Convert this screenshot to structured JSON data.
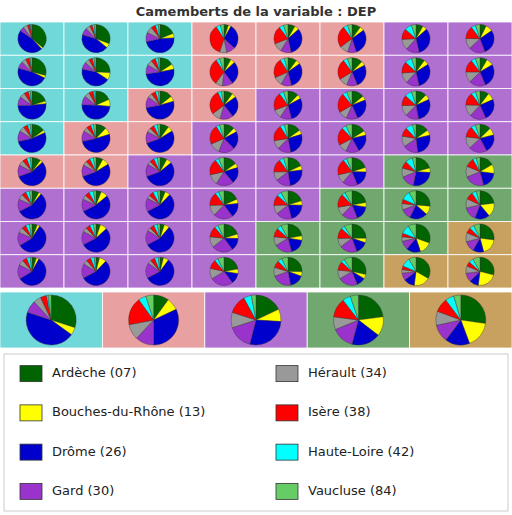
{
  "chart_data": {
    "type": "pie",
    "title": "Camemberts de la variable : DEP",
    "categories": [
      "Ardèche (07)",
      "Bouches-du-Rhône (13)",
      " Drôme (26)",
      "Gard (30)",
      "Hérault (34)",
      "Isère (38)",
      " Haute-Loire (42)",
      "Vaucluse (84)"
    ],
    "colors": [
      "#006400",
      "#ffff00",
      "#0000cc",
      "#9933cc",
      "#999999",
      "#ff0000",
      "#00ffff",
      "#66cc66"
    ],
    "legend": "bottom",
    "series": [
      {
        "color": "#70d8d8",
        "values": [
          35,
          2,
          45,
          5,
          5,
          3,
          1,
          1
        ]
      },
      {
        "color": "#70d8d8",
        "values": [
          30,
          5,
          42,
          8,
          5,
          3,
          2,
          2
        ]
      },
      {
        "color": "#70d8d8",
        "values": [
          18,
          5,
          45,
          10,
          7,
          5,
          3,
          2
        ]
      },
      {
        "color": "#e8a0a0",
        "values": [
          5,
          3,
          28,
          10,
          8,
          35,
          5,
          4
        ]
      },
      {
        "color": "#e8a0a0",
        "values": [
          8,
          5,
          32,
          12,
          10,
          20,
          5,
          5
        ]
      },
      {
        "color": "#e8a0a0",
        "values": [
          10,
          5,
          30,
          10,
          10,
          25,
          5,
          5
        ]
      },
      {
        "color": "#b070d0",
        "values": [
          8,
          5,
          32,
          15,
          12,
          12,
          8,
          5
        ]
      },
      {
        "color": "#b070d0",
        "values": [
          7,
          8,
          28,
          18,
          12,
          14,
          5,
          5
        ]
      },
      {
        "color": "#70d8d8",
        "values": [
          28,
          3,
          45,
          8,
          5,
          4,
          1,
          2
        ]
      },
      {
        "color": "#70d8d8",
        "values": [
          25,
          8,
          42,
          8,
          5,
          4,
          2,
          2
        ]
      },
      {
        "color": "#70d8d8",
        "values": [
          15,
          6,
          48,
          10,
          6,
          5,
          3,
          2
        ]
      },
      {
        "color": "#e8a0a0",
        "values": [
          8,
          5,
          26,
          12,
          8,
          30,
          4,
          5
        ]
      },
      {
        "color": "#e8a0a0",
        "values": [
          10,
          5,
          30,
          12,
          10,
          22,
          5,
          4
        ]
      },
      {
        "color": "#e8a0a0",
        "values": [
          12,
          5,
          26,
          12,
          10,
          23,
          5,
          5
        ]
      },
      {
        "color": "#b070d0",
        "values": [
          10,
          6,
          30,
          15,
          12,
          13,
          8,
          5
        ]
      },
      {
        "color": "#b070d0",
        "values": [
          8,
          8,
          26,
          18,
          12,
          14,
          5,
          5
        ]
      },
      {
        "color": "#70d8d8",
        "values": [
          20,
          3,
          50,
          10,
          6,
          5,
          2,
          2
        ]
      },
      {
        "color": "#70d8d8",
        "values": [
          18,
          8,
          48,
          10,
          6,
          5,
          2,
          1
        ]
      },
      {
        "color": "#e8a0a0",
        "values": [
          14,
          6,
          50,
          12,
          5,
          5,
          3,
          2
        ]
      },
      {
        "color": "#e8a0a0",
        "values": [
          10,
          5,
          24,
          15,
          10,
          28,
          4,
          3
        ]
      },
      {
        "color": "#b070d0",
        "values": [
          12,
          5,
          28,
          13,
          10,
          20,
          5,
          5
        ]
      },
      {
        "color": "#b070d0",
        "values": [
          14,
          5,
          24,
          13,
          10,
          22,
          5,
          6
        ]
      },
      {
        "color": "#b070d0",
        "values": [
          12,
          6,
          28,
          15,
          12,
          12,
          8,
          5
        ]
      },
      {
        "color": "#b070d0",
        "values": [
          10,
          8,
          24,
          18,
          13,
          14,
          5,
          5
        ]
      },
      {
        "color": "#70d8d8",
        "values": [
          15,
          3,
          52,
          12,
          6,
          5,
          3,
          2
        ]
      },
      {
        "color": "#e8a0a0",
        "values": [
          12,
          8,
          50,
          12,
          5,
          5,
          3,
          3
        ]
      },
      {
        "color": "#e8a0a0",
        "values": [
          10,
          6,
          52,
          13,
          5,
          5,
          4,
          3
        ]
      },
      {
        "color": "#b070d0",
        "values": [
          12,
          5,
          20,
          18,
          12,
          22,
          4,
          5
        ]
      },
      {
        "color": "#b070d0",
        "values": [
          15,
          5,
          26,
          15,
          10,
          18,
          5,
          4
        ]
      },
      {
        "color": "#b070d0",
        "values": [
          16,
          5,
          20,
          15,
          10,
          20,
          5,
          7
        ]
      },
      {
        "color": "#b070d0",
        "values": [
          15,
          6,
          26,
          17,
          12,
          10,
          8,
          4
        ]
      },
      {
        "color": "#b070d0",
        "values": [
          12,
          8,
          20,
          20,
          13,
          12,
          5,
          5
        ]
      },
      {
        "color": "#e8a0a0",
        "values": [
          10,
          3,
          55,
          13,
          6,
          5,
          4,
          2
        ]
      },
      {
        "color": "#e8a0a0",
        "values": [
          8,
          8,
          52,
          13,
          5,
          5,
          4,
          3
        ]
      },
      {
        "color": "#b070d0",
        "values": [
          8,
          6,
          54,
          14,
          4,
          5,
          4,
          3
        ]
      },
      {
        "color": "#b070d0",
        "values": [
          15,
          5,
          18,
          20,
          12,
          18,
          4,
          6
        ]
      },
      {
        "color": "#b070d0",
        "values": [
          18,
          5,
          24,
          17,
          10,
          15,
          5,
          5
        ]
      },
      {
        "color": "#b070d0",
        "values": [
          20,
          5,
          18,
          17,
          10,
          18,
          4,
          6
        ]
      },
      {
        "color": "#70a870",
        "values": [
          20,
          5,
          26,
          15,
          10,
          8,
          8,
          4
        ]
      },
      {
        "color": "#70a870",
        "values": [
          16,
          10,
          18,
          22,
          12,
          10,
          4,
          4
        ]
      },
      {
        "color": "#b070d0",
        "values": [
          8,
          3,
          55,
          14,
          6,
          5,
          4,
          3
        ]
      },
      {
        "color": "#b070d0",
        "values": [
          6,
          8,
          52,
          14,
          5,
          5,
          5,
          3
        ]
      },
      {
        "color": "#b070d0",
        "values": [
          6,
          6,
          54,
          15,
          4,
          5,
          5,
          3
        ]
      },
      {
        "color": "#b070d0",
        "values": [
          18,
          5,
          16,
          22,
          12,
          15,
          4,
          6
        ]
      },
      {
        "color": "#b070d0",
        "values": [
          20,
          5,
          20,
          18,
          10,
          12,
          5,
          8
        ]
      },
      {
        "color": "#70a870",
        "values": [
          22,
          5,
          16,
          18,
          10,
          15,
          4,
          8
        ]
      },
      {
        "color": "#70a870",
        "values": [
          26,
          10,
          20,
          12,
          7,
          5,
          10,
          8
        ]
      },
      {
        "color": "#70a870",
        "values": [
          22,
          15,
          16,
          15,
          10,
          8,
          5,
          4
        ]
      },
      {
        "color": "#b070d0",
        "values": [
          6,
          3,
          56,
          15,
          6,
          5,
          4,
          3
        ]
      },
      {
        "color": "#b070d0",
        "values": [
          5,
          8,
          53,
          15,
          5,
          5,
          4,
          3
        ]
      },
      {
        "color": "#b070d0",
        "values": [
          5,
          6,
          55,
          16,
          4,
          5,
          4,
          3
        ]
      },
      {
        "color": "#b070d0",
        "values": [
          20,
          5,
          14,
          24,
          12,
          12,
          4,
          7
        ]
      },
      {
        "color": "#70a870",
        "values": [
          22,
          5,
          18,
          20,
          10,
          10,
          5,
          8
        ]
      },
      {
        "color": "#70a870",
        "values": [
          25,
          5,
          14,
          20,
          10,
          12,
          4,
          9
        ]
      },
      {
        "color": "#70a870",
        "values": [
          30,
          14,
          16,
          10,
          5,
          4,
          10,
          9
        ]
      },
      {
        "color": "#c8a060",
        "values": [
          26,
          18,
          12,
          12,
          10,
          6,
          5,
          7
        ]
      },
      {
        "color": "#b070d0",
        "values": [
          5,
          3,
          57,
          16,
          6,
          5,
          4,
          2
        ]
      },
      {
        "color": "#b070d0",
        "values": [
          4,
          8,
          54,
          16,
          5,
          5,
          4,
          2
        ]
      },
      {
        "color": "#b070d0",
        "values": [
          4,
          6,
          56,
          17,
          4,
          5,
          4,
          2
        ]
      },
      {
        "color": "#b070d0",
        "values": [
          22,
          5,
          12,
          26,
          12,
          10,
          4,
          7
        ]
      },
      {
        "color": "#70a870",
        "values": [
          25,
          5,
          16,
          22,
          10,
          8,
          5,
          7
        ]
      },
      {
        "color": "#70a870",
        "values": [
          28,
          5,
          10,
          22,
          10,
          10,
          4,
          9
        ]
      },
      {
        "color": "#c8a060",
        "values": [
          32,
          18,
          12,
          8,
          4,
          4,
          10,
          8
        ]
      },
      {
        "color": "#c8a060",
        "values": [
          28,
          22,
          10,
          10,
          8,
          5,
          5,
          8
        ]
      },
      {
        "color": "#70d8d8",
        "values": [
          30,
          5,
          45,
          8,
          5,
          4,
          1,
          2
        ]
      },
      {
        "color": "#e8a0a0",
        "values": [
          10,
          8,
          32,
          12,
          10,
          18,
          5,
          5
        ]
      },
      {
        "color": "#b070d0",
        "values": [
          18,
          8,
          28,
          16,
          10,
          12,
          5,
          3
        ]
      },
      {
        "color": "#70a870",
        "values": [
          22,
          12,
          18,
          14,
          8,
          12,
          5,
          5
        ]
      },
      {
        "color": "#c8a060",
        "values": [
          24,
          15,
          14,
          10,
          8,
          8,
          5,
          4
        ]
      }
    ]
  }
}
